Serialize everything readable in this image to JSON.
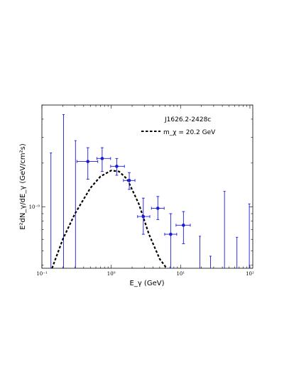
{
  "chart_data": {
    "type": "scatter",
    "title": "J1626.2-2428c",
    "xlabel": "E_γ (GeV)",
    "ylabel": "E²dN_γ/dE_γ (GeV/cm²s)",
    "x_scale": "log",
    "y_scale": "log",
    "xlim": [
      0.1,
      110
    ],
    "ylim": [
      3.8e-10,
      5e-09
    ],
    "x_ticks": [
      {
        "value": 0.1,
        "label": "10⁻¹"
      },
      {
        "value": 1,
        "label": "10⁰"
      },
      {
        "value": 10,
        "label": "10¹"
      },
      {
        "value": 100,
        "label": "10²"
      }
    ],
    "y_ticks": [
      {
        "value": 1e-09,
        "label": "10⁻⁹"
      }
    ],
    "legend": {
      "placement": "top-right",
      "entry": "m_χ = 20.2 GeV"
    },
    "model_curve": {
      "name": "m_χ = 20.2 GeV",
      "style": "dashed",
      "color": "#000000",
      "x": [
        0.14,
        0.2,
        0.3,
        0.5,
        0.7,
        1.0,
        1.3,
        1.7,
        2.5,
        3.5,
        5.0,
        6.3
      ],
      "y": [
        3.8e-10,
        6e-10,
        9e-10,
        1.35e-09,
        1.62e-09,
        1.78e-09,
        1.75e-09,
        1.55e-09,
        1.05e-09,
        6.5e-10,
        4.4e-10,
        3.8e-10
      ]
    },
    "data_points": {
      "color": "#1a1adb",
      "points": [
        {
          "x": 0.46,
          "y": 2.05e-09,
          "xlo": 0.32,
          "xhi": 0.64,
          "ylo": 1.55e-09,
          "yhi": 2.55e-09
        },
        {
          "x": 0.74,
          "y": 2.15e-09,
          "xlo": 0.62,
          "xhi": 0.98,
          "ylo": 1.75e-09,
          "yhi": 2.55e-09
        },
        {
          "x": 1.2,
          "y": 1.9e-09,
          "xlo": 0.98,
          "xhi": 1.55,
          "ylo": 1.65e-09,
          "yhi": 2.15e-09
        },
        {
          "x": 1.82,
          "y": 1.52e-09,
          "xlo": 1.5,
          "xhi": 2.2,
          "ylo": 1.32e-09,
          "yhi": 1.72e-09
        },
        {
          "x": 2.9,
          "y": 8.6e-10,
          "xlo": 2.4,
          "xhi": 3.6,
          "ylo": 6.5e-10,
          "yhi": 1.15e-09
        },
        {
          "x": 4.7,
          "y": 9.8e-10,
          "xlo": 3.8,
          "xhi": 5.8,
          "ylo": 8.2e-10,
          "yhi": 1.18e-09
        },
        {
          "x": 7.2,
          "y": 6.5e-10,
          "xlo": 5.9,
          "xhi": 8.8,
          "ylo": 3.8e-10,
          "yhi": 9e-10
        },
        {
          "x": 11.0,
          "y": 7.5e-10,
          "xlo": 8.6,
          "xhi": 13.8,
          "ylo": 5.6e-10,
          "yhi": 9.3e-10
        }
      ]
    },
    "upper_bars": {
      "color": "#1a1adb",
      "bars": [
        {
          "x": 0.135,
          "ylo": 3.8e-10,
          "yhi": 2.35e-09
        },
        {
          "x": 0.205,
          "ylo": 3.8e-10,
          "yhi": 4.3e-09
        },
        {
          "x": 0.305,
          "ylo": 3.8e-10,
          "yhi": 2.85e-09
        },
        {
          "x": 19.0,
          "ylo": 3.8e-10,
          "yhi": 6.3e-10
        },
        {
          "x": 27.0,
          "ylo": 3.8e-10,
          "yhi": 4.6e-10
        },
        {
          "x": 43.0,
          "ylo": 3.8e-10,
          "yhi": 1.28e-09
        },
        {
          "x": 65.0,
          "ylo": 3.8e-10,
          "yhi": 6.2e-10
        },
        {
          "x": 98.0,
          "ylo": 3.8e-10,
          "yhi": 1.05e-09
        }
      ]
    }
  }
}
